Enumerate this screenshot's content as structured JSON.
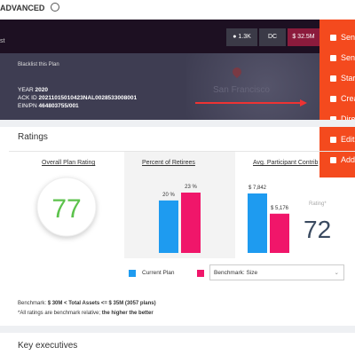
{
  "top": {
    "title": "ADVANCED"
  },
  "header": {
    "left": "st",
    "badges": [
      "1.3K",
      "DC",
      "$ 32.5M"
    ]
  },
  "menu": {
    "items": [
      "Send",
      "Send",
      "Start",
      "Crea",
      "Direc",
      "Edit",
      "Add"
    ]
  },
  "plan": {
    "blacklist": "Blacklist this Plan",
    "year_label": "YEAR",
    "year": "2020",
    "ack_label": "ACK ID",
    "ack": "20211015010423NAL0028533008001",
    "ein_label": "EIN/PN",
    "ein": "464803755/001",
    "map_city": "San Francisco"
  },
  "ratings": {
    "title": "Ratings",
    "overall": {
      "title": "Overall Plan Rating",
      "value": "77"
    },
    "retirees": {
      "title": "Percent of Retirees",
      "values": [
        20,
        23
      ],
      "value_labels": [
        "20 %",
        "23 %"
      ]
    },
    "contrib": {
      "title": "Avg. Participant Contrib",
      "values": [
        7842,
        5176
      ],
      "value_labels": [
        "$ 7,842",
        "$ 5,176"
      ],
      "rating_label": "Rating*",
      "rating": "72"
    },
    "legend": {
      "current": "Current Plan",
      "select": "Benchmark: Size"
    },
    "note1_a": "Benchmark: ",
    "note1_b": "$ 30M < Total Assets <= $ 35M (3057 plans)",
    "note2_a": "*All ratings are benchmark relative; ",
    "note2_b": "the higher the better"
  },
  "executives": {
    "title": "Key executives"
  }
}
